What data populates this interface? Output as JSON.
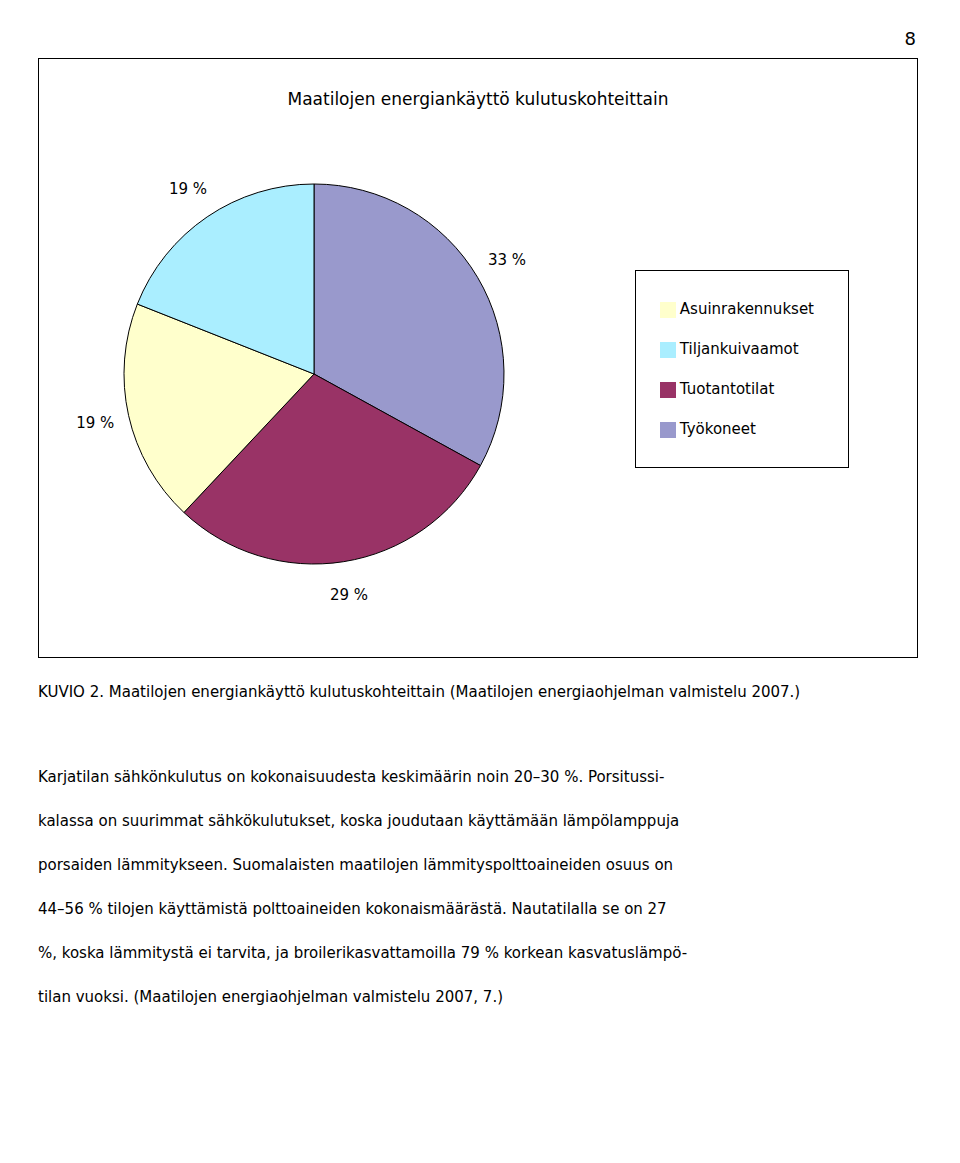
{
  "chart_data": {
    "type": "pie",
    "title": "Maatilojen energiankäyttö kulutuskohteittain",
    "categories": [
      "Työkoneet",
      "Tuotantotilat",
      "Asuinrakennukset",
      "Tiljankuivaamot"
    ],
    "values": [
      33,
      29,
      19,
      19
    ],
    "value_labels": [
      "33 %",
      "29 %",
      "19 %",
      "19 %"
    ],
    "colors": [
      "#9999cc",
      "#993366",
      "#ffffcc",
      "#aaeeff"
    ],
    "data_labels": true,
    "legend": "right",
    "annotations": [
      "8"
    ],
    "caption": "KUVIO 2. Maatilojen energiankäyttö kulutuskohteittain (Maatilojen energiaohjelman valmistelu 2007.)",
    "text": [
      "Karjatilan sähkönkulutus on kokonaisuudesta keskimäärin noin 20–30 %. Porsitussi-",
      "kalassa on suurimmat sähkökulutukset, koska joudutaan käyttämään lämpölamppuja",
      "porsaiden lämmitykseen. Suomalaisten maatilojen lämmityspolttoaineiden osuus on",
      "44–56 % tilojen käyttämistä polttoaineiden kokonaismäärästä. Nautatilalla se on 27",
      "%, koska lämmitystä ei tarvita, ja broilerikasvattamoilla 79 % korkean kasvatuslämpö-",
      "tilan vuoksi. (Maatilojen energiaohjelman valmistelu 2007, 7.)"
    ]
  }
}
